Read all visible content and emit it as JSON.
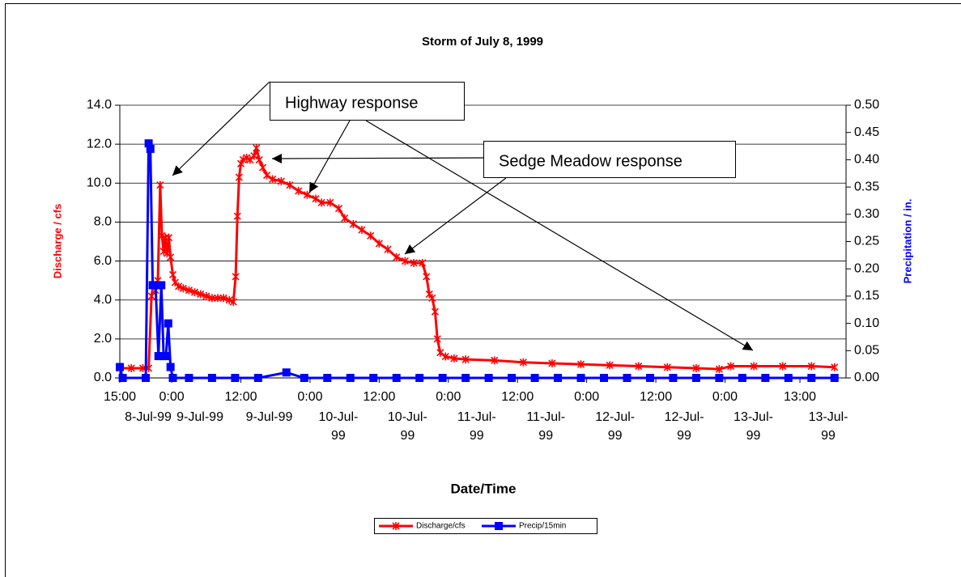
{
  "chart_data": {
    "type": "line",
    "title": "Storm of July 8, 1999",
    "x_label": "Date/Time",
    "y_label": "Discharge / cfs",
    "y2_label": "Precipitation / in.",
    "xlim": [
      0,
      126
    ],
    "xticks": [
      {
        "value": 0,
        "label": "15:00"
      },
      {
        "value": 9,
        "label": "0:00"
      },
      {
        "value": 21,
        "label": "12:00"
      },
      {
        "value": 33,
        "label": "0:00"
      },
      {
        "value": 45,
        "label": "12:00"
      },
      {
        "value": 57,
        "label": "0:00"
      },
      {
        "value": 69,
        "label": "12:00"
      },
      {
        "value": 81,
        "label": "0:00"
      },
      {
        "value": 93,
        "label": "12:00"
      },
      {
        "value": 105,
        "label": "0:00"
      },
      {
        "value": 118,
        "label": "13:00"
      }
    ],
    "xtick_dates": [
      "8-Jul-99",
      "9-Jul-99",
      "9-Jul-99",
      "10-Jul-99",
      "10-Jul-99",
      "11-Jul-99",
      "11-Jul-99",
      "12-Jul-99",
      "12-Jul-99",
      "13-Jul-99",
      "13-Jul-99"
    ],
    "ylim": [
      0,
      14
    ],
    "yticks": [
      {
        "value": 0,
        "label": "0.0"
      },
      {
        "value": 2,
        "label": "2.0"
      },
      {
        "value": 4,
        "label": "4.0"
      },
      {
        "value": 6,
        "label": "6.0"
      },
      {
        "value": 8,
        "label": "8.0"
      },
      {
        "value": 10,
        "label": "10.0"
      },
      {
        "value": 12,
        "label": "12.0"
      },
      {
        "value": 14,
        "label": "14.0"
      }
    ],
    "y2lim": [
      0,
      0.5
    ],
    "y2ticks": [
      {
        "value": 0,
        "label": "0.00"
      },
      {
        "value": 0.05,
        "label": "0.05"
      },
      {
        "value": 0.1,
        "label": "0.10"
      },
      {
        "value": 0.15,
        "label": "0.15"
      },
      {
        "value": 0.2,
        "label": "0.20"
      },
      {
        "value": 0.25,
        "label": "0.25"
      },
      {
        "value": 0.3,
        "label": "0.30"
      },
      {
        "value": 0.35,
        "label": "0.35"
      },
      {
        "value": 0.4,
        "label": "0.40"
      },
      {
        "value": 0.45,
        "label": "0.45"
      },
      {
        "value": 0.5,
        "label": "0.50"
      }
    ],
    "grid": true,
    "series": [
      {
        "name": "Discharge/cfs",
        "color": "#ff0000",
        "marker": "asterisk",
        "x": [
          0,
          2,
          4,
          5,
          5.5,
          5.8,
          6.2,
          6.6,
          7,
          7.3,
          7.6,
          7.9,
          8.2,
          8.5,
          8.8,
          9.2,
          9.6,
          10.2,
          11,
          12,
          13,
          14,
          15,
          16,
          17,
          18,
          19,
          19.7,
          20.1,
          20.4,
          20.7,
          21,
          21.4,
          22,
          22.6,
          23.3,
          23.7,
          24.2,
          24.8,
          25.5,
          26.5,
          28,
          29.5,
          31,
          32.5,
          34,
          35,
          36.5,
          38,
          39,
          40.5,
          42,
          43.5,
          45,
          46.5,
          48,
          49.5,
          51,
          52.5,
          53.2,
          53.7,
          54.2,
          54.7,
          55.1,
          55.6,
          56.5,
          58,
          60,
          65,
          70,
          75,
          80,
          85,
          90,
          95,
          100,
          104,
          106,
          110,
          115,
          120,
          124
        ],
        "values": [
          0.5,
          0.5,
          0.5,
          0.5,
          4.2,
          4.8,
          4.5,
          5.0,
          9.9,
          7.3,
          6.5,
          7.2,
          6.4,
          7.2,
          6.2,
          5.3,
          4.9,
          4.7,
          4.6,
          4.5,
          4.4,
          4.3,
          4.2,
          4.1,
          4.1,
          4.1,
          4.0,
          3.9,
          5.2,
          8.3,
          10.3,
          11.0,
          11.2,
          11.3,
          11.2,
          11.4,
          11.8,
          11.2,
          10.8,
          10.4,
          10.2,
          10.1,
          9.9,
          9.6,
          9.4,
          9.2,
          9.0,
          9.0,
          8.7,
          8.2,
          7.9,
          7.6,
          7.3,
          6.9,
          6.6,
          6.2,
          6.0,
          5.9,
          5.9,
          5.2,
          4.3,
          4.1,
          3.4,
          2.0,
          1.3,
          1.1,
          1.0,
          0.95,
          0.9,
          0.8,
          0.75,
          0.7,
          0.65,
          0.6,
          0.55,
          0.5,
          0.45,
          0.6,
          0.6,
          0.6,
          0.6,
          0.55
        ]
      },
      {
        "name": "Precip/15min",
        "color": "#0000ff",
        "marker": "square",
        "axis": "y2",
        "x": [
          0,
          0.5,
          4.5,
          5,
          5.3,
          5.7,
          6.2,
          6.7,
          7.2,
          7.6,
          8,
          8.4,
          8.8,
          9.2,
          12,
          16,
          20,
          24,
          28.9,
          32,
          36,
          40,
          44,
          48,
          52,
          56,
          60,
          64,
          68,
          72,
          76,
          80,
          84,
          88,
          92,
          96,
          100,
          104,
          108,
          112,
          116,
          120,
          124
        ],
        "values": [
          0.02,
          0,
          0,
          0.43,
          0.42,
          0.17,
          0.17,
          0.04,
          0.17,
          0.04,
          0.04,
          0.1,
          0.02,
          0,
          0,
          0,
          0,
          0,
          0.01,
          0,
          0,
          0,
          0,
          0,
          0,
          0,
          0,
          0,
          0,
          0,
          0,
          0,
          0,
          0,
          0,
          0,
          0,
          0,
          0,
          0,
          0,
          0,
          0
        ]
      }
    ],
    "annotations": [
      "Highway response",
      "Sedge Meadow response"
    ]
  }
}
